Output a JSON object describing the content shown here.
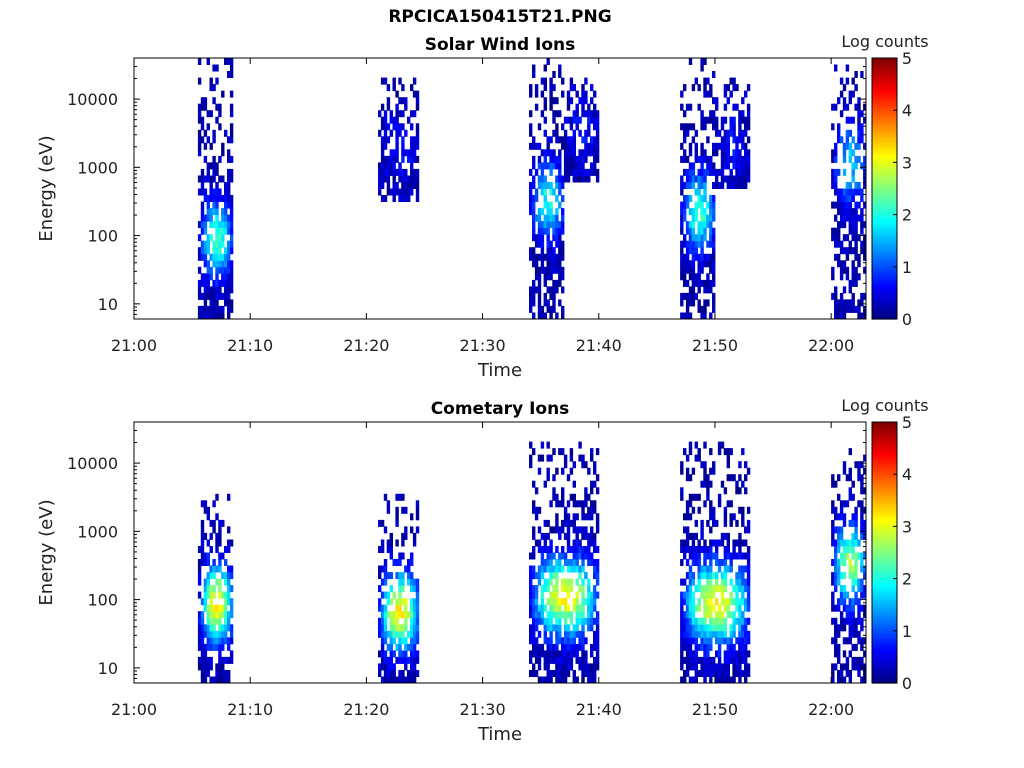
{
  "page": {
    "title": "RPCICA150415T21.PNG"
  },
  "colors": {
    "frame": "#000000",
    "text": "#222222",
    "background": "#ffffff"
  },
  "chart_data": [
    {
      "type": "heatmap",
      "title": "Solar Wind Ions",
      "xlabel": "Time",
      "ylabel": "Energy (eV)",
      "yscale": "log",
      "ylim": [
        6,
        40000
      ],
      "xlim": [
        "21:00",
        "22:03"
      ],
      "xticks": [
        "21:00",
        "21:10",
        "21:20",
        "21:30",
        "21:40",
        "21:50",
        "22:00"
      ],
      "yticks": [
        "10",
        "100",
        "1000",
        "10000"
      ],
      "colorbar": {
        "label": "Log counts",
        "ticks": [
          "0",
          "1",
          "2",
          "3",
          "4",
          "5"
        ],
        "range": [
          0,
          5
        ],
        "colormap": "jet"
      },
      "bursts": [
        {
          "start": "21:05.5",
          "end": "21:08.5",
          "emin": 6,
          "emax": 40000,
          "peak_energy": 80,
          "peak": 2.0
        },
        {
          "start": "21:21",
          "end": "21:24.5",
          "emin": 300,
          "emax": 20000,
          "peak_energy": 2000,
          "peak": 0.5
        },
        {
          "start": "21:34",
          "end": "21:37",
          "emin": 6,
          "emax": 40000,
          "peak_energy": 300,
          "peak": 1.8
        },
        {
          "start": "21:37",
          "end": "21:40",
          "emin": 600,
          "emax": 20000,
          "peak_energy": 3000,
          "peak": 0.5
        },
        {
          "start": "21:47",
          "end": "21:50",
          "emin": 6,
          "emax": 40000,
          "peak_energy": 200,
          "peak": 2.0
        },
        {
          "start": "21:50",
          "end": "21:53",
          "emin": 400,
          "emax": 20000,
          "peak_energy": 2000,
          "peak": 0.5
        },
        {
          "start": "22:00",
          "end": "22:03",
          "emin": 6,
          "emax": 30000,
          "peak_energy": 1000,
          "peak": 1.5
        }
      ]
    },
    {
      "type": "heatmap",
      "title": "Cometary Ions",
      "xlabel": "Time",
      "ylabel": "Energy (eV)",
      "yscale": "log",
      "ylim": [
        6,
        40000
      ],
      "xlim": [
        "21:00",
        "22:03"
      ],
      "xticks": [
        "21:00",
        "21:10",
        "21:20",
        "21:30",
        "21:40",
        "21:50",
        "22:00"
      ],
      "yticks": [
        "10",
        "100",
        "1000",
        "10000"
      ],
      "colorbar": {
        "label": "Log counts",
        "ticks": [
          "0",
          "1",
          "2",
          "3",
          "4",
          "5"
        ],
        "range": [
          0,
          5
        ],
        "colormap": "jet"
      },
      "bursts": [
        {
          "start": "21:05.5",
          "end": "21:08.5",
          "emin": 6,
          "emax": 3000,
          "peak_energy": 80,
          "peak": 3.0
        },
        {
          "start": "21:21",
          "end": "21:24.5",
          "emin": 6,
          "emax": 3000,
          "peak_energy": 60,
          "peak": 3.0
        },
        {
          "start": "21:34",
          "end": "21:40",
          "emin": 6,
          "emax": 20000,
          "peak_energy": 100,
          "peak": 3.0
        },
        {
          "start": "21:47",
          "end": "21:53",
          "emin": 6,
          "emax": 20000,
          "peak_energy": 80,
          "peak": 3.0
        },
        {
          "start": "22:00",
          "end": "22:03",
          "emin": 6,
          "emax": 15000,
          "peak_energy": 300,
          "peak": 2.5
        }
      ]
    }
  ]
}
